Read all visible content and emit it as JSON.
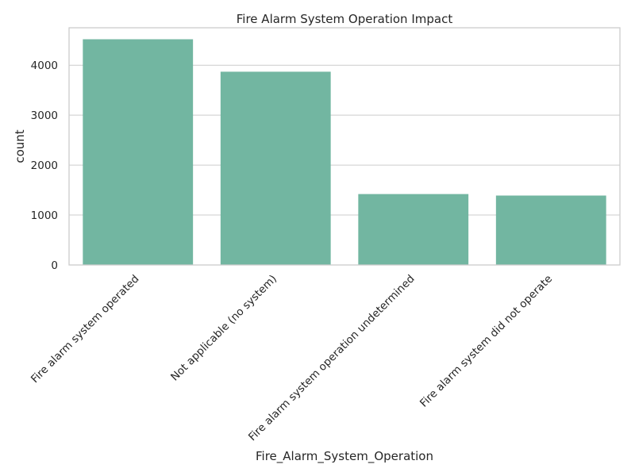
{
  "chart_data": {
    "type": "bar",
    "title": "Fire Alarm System Operation Impact",
    "xlabel": "Fire_Alarm_System_Operation",
    "ylabel": "count",
    "categories": [
      "Fire alarm system operated",
      "Not applicable (no system)",
      "Fire alarm system operation undetermined",
      "Fire alarm system did not operate"
    ],
    "values": [
      4520,
      3870,
      1420,
      1390
    ],
    "ylim": [
      0,
      4750
    ],
    "yticks": [
      0,
      1000,
      2000,
      3000,
      4000
    ],
    "ytick_labels": [
      "0",
      "1000",
      "2000",
      "3000",
      "4000"
    ],
    "bar_color": "#72b6a1",
    "grid": true,
    "legend": "none"
  }
}
